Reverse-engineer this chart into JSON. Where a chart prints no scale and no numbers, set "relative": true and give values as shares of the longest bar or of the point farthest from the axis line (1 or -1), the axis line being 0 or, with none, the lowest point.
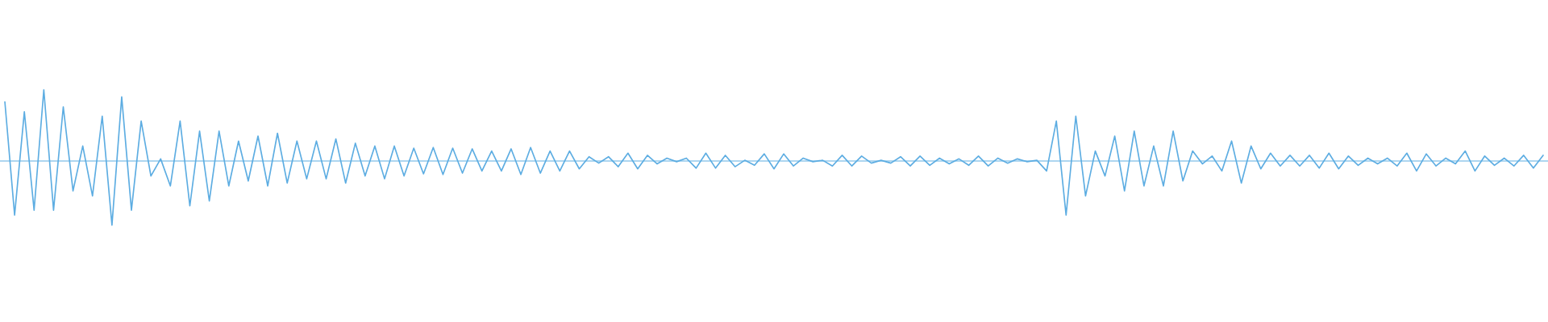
{
  "chart_data": {
    "type": "line",
    "relative": true,
    "legend": false,
    "ref_lines": [
      {
        "axis": "y",
        "value": 0,
        "color": "#5dade2"
      }
    ],
    "tick_labels": false,
    "categories": [
      null,
      null,
      null,
      null,
      null,
      null,
      null,
      null,
      null,
      null,
      null,
      null,
      null,
      null,
      null,
      null,
      null,
      null,
      null,
      null,
      null,
      null,
      null,
      null,
      null,
      null,
      null,
      null,
      null,
      null,
      null,
      null,
      null,
      null,
      null,
      null,
      null,
      null,
      null,
      null,
      null,
      null,
      null,
      null,
      null,
      null,
      null,
      null,
      null,
      null,
      null,
      null,
      null,
      null,
      null,
      null,
      null,
      null,
      null,
      null,
      null,
      null,
      null,
      null,
      null,
      null,
      null,
      null,
      null,
      null,
      null,
      null,
      null,
      null,
      null,
      null,
      null,
      null,
      null,
      null,
      null,
      null,
      null,
      null,
      null,
      null,
      null,
      null,
      null,
      null,
      null,
      null,
      null,
      null,
      null,
      null,
      null,
      null,
      null,
      null,
      null,
      null,
      null,
      null,
      null,
      null,
      null,
      null,
      null,
      null,
      null,
      null,
      null,
      null,
      null,
      null,
      null,
      null,
      null,
      null,
      null,
      null,
      null,
      null,
      null,
      null,
      null,
      null,
      null,
      null,
      null,
      null,
      null,
      null,
      null,
      null,
      null,
      null,
      null,
      null,
      null,
      null,
      null,
      null,
      null,
      null,
      null,
      null,
      null,
      null,
      null,
      null,
      null,
      null,
      null,
      null,
      null,
      null,
      null
    ],
    "series": [
      {
        "color": "#5dade2",
        "values": [
          0.83,
          -0.76,
          0.69,
          -0.69,
          1,
          -0.69,
          0.76,
          -0.42,
          0.21,
          -0.49,
          0.63,
          -0.9,
          0.9,
          -0.69,
          0.56,
          -0.21,
          0.03,
          -0.35,
          0.56,
          -0.63,
          0.42,
          -0.56,
          0.42,
          -0.35,
          0.28,
          -0.28,
          0.35,
          -0.35,
          0.39,
          -0.31,
          0.28,
          -0.25,
          0.28,
          -0.25,
          0.31,
          -0.31,
          0.25,
          -0.21,
          0.21,
          -0.25,
          0.21,
          -0.21,
          0.18,
          -0.18,
          0.19,
          -0.19,
          0.18,
          -0.17,
          0.17,
          -0.14,
          0.14,
          -0.14,
          0.17,
          -0.19,
          0.19,
          -0.17,
          0.14,
          -0.14,
          0.14,
          -0.11,
          0.06,
          -0.03,
          0.06,
          -0.08,
          0.11,
          -0.11,
          0.08,
          -0.04,
          0.04,
          -0.01,
          0.04,
          -0.1,
          0.11,
          -0.1,
          0.08,
          -0.08,
          0.01,
          -0.06,
          0.1,
          -0.11,
          0.1,
          -0.07,
          0.04,
          -0.01,
          0.01,
          -0.07,
          0.08,
          -0.07,
          0.07,
          -0.03,
          0.01,
          -0.03,
          0.06,
          -0.07,
          0.07,
          -0.06,
          0.04,
          -0.04,
          0.03,
          -0.06,
          0.07,
          -0.07,
          0.04,
          -0.03,
          0.03,
          -0.01,
          0.01,
          -0.14,
          0.56,
          -0.76,
          0.63,
          -0.49,
          0.14,
          -0.21,
          0.35,
          -0.42,
          0.42,
          -0.35,
          0.21,
          -0.35,
          0.42,
          -0.28,
          0.14,
          -0.04,
          0.07,
          -0.14,
          0.28,
          -0.31,
          0.21,
          -0.11,
          0.11,
          -0.07,
          0.08,
          -0.07,
          0.08,
          -0.1,
          0.11,
          -0.11,
          0.07,
          -0.06,
          0.04,
          -0.04,
          0.04,
          -0.07,
          0.11,
          -0.14,
          0.1,
          -0.07,
          0.04,
          -0.04,
          0.14,
          -0.14,
          0.07,
          -0.06,
          0.04,
          -0.07,
          0.08,
          -0.1,
          0.08
        ]
      }
    ]
  }
}
